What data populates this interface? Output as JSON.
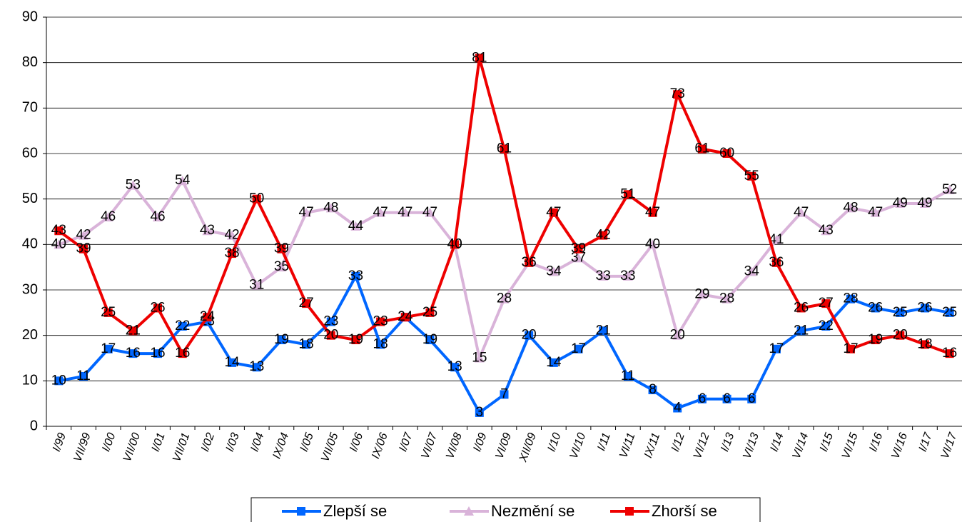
{
  "chart_data": {
    "type": "line",
    "categories": [
      "I/99",
      "VII/99",
      "I/00",
      "VII/00",
      "I/01",
      "VII/01",
      "I/02",
      "I/03",
      "I/04",
      "IX/04",
      "I/05",
      "VII/05",
      "I/06",
      "IX/06",
      "I/07",
      "VI/07",
      "VI/08",
      "I/09",
      "VI/09",
      "XII/09",
      "I/10",
      "VI/10",
      "I/11",
      "VI/11",
      "IX/11",
      "I/12",
      "VI/12",
      "I/13",
      "VI/13",
      "I/14",
      "VI/14",
      "I/15",
      "VI/15",
      "I/16",
      "VI/16",
      "I/17",
      "VI/17"
    ],
    "series": [
      {
        "name": "Zlepší se",
        "color": "#0066ff",
        "marker": "square",
        "values": [
          10,
          11,
          17,
          16,
          16,
          22,
          23,
          14,
          13,
          19,
          18,
          23,
          33,
          18,
          24,
          19,
          13,
          3,
          7,
          20,
          14,
          17,
          21,
          11,
          8,
          4,
          6,
          6,
          6,
          17,
          21,
          22,
          28,
          26,
          25,
          26,
          25
        ]
      },
      {
        "name": "Nezmění se",
        "color": "#d9b3d9",
        "marker": "triangle",
        "values": [
          40,
          42,
          46,
          53,
          46,
          54,
          43,
          42,
          31,
          35,
          47,
          48,
          44,
          47,
          47,
          47,
          40,
          15,
          28,
          36,
          34,
          37,
          33,
          33,
          40,
          20,
          29,
          28,
          34,
          41,
          47,
          43,
          48,
          47,
          49,
          49,
          52
        ]
      },
      {
        "name": "Zhorší se",
        "color": "#ee0000",
        "marker": "square",
        "values": [
          43,
          39,
          25,
          21,
          26,
          16,
          24,
          38,
          50,
          39,
          27,
          20,
          19,
          23,
          24,
          25,
          40,
          81,
          61,
          36,
          47,
          39,
          42,
          51,
          47,
          73,
          61,
          60,
          55,
          36,
          26,
          27,
          17,
          19,
          20,
          18,
          16
        ]
      }
    ],
    "ylim": [
      0,
      90
    ],
    "yticks": [
      0,
      10,
      20,
      30,
      40,
      50,
      60,
      70,
      80,
      90
    ],
    "grid": true
  }
}
